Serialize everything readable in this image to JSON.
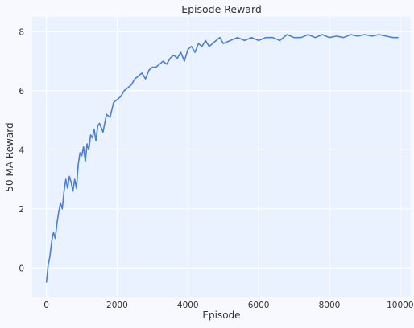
{
  "chart_data": {
    "type": "line",
    "title": "Episode Reward",
    "xlabel": "Episode",
    "ylabel": "50 MA Reward",
    "xlim": [
      -400,
      10300
    ],
    "ylim": [
      -1.0,
      8.5
    ],
    "xticks": [
      0,
      2000,
      4000,
      6000,
      8000,
      10000
    ],
    "yticks": [
      0,
      2,
      4,
      6,
      8
    ],
    "grid": true,
    "colors": {
      "line": "#4a7fd6",
      "plot_bg": "#eaf2ff",
      "page_bg": "#f7f9fe",
      "grid": "#ffffff"
    },
    "series": [
      {
        "x": [
          0,
          50,
          100,
          150,
          200,
          250,
          300,
          350,
          400,
          450,
          500,
          550,
          600,
          650,
          700,
          750,
          800,
          850,
          900,
          950,
          1000,
          1050,
          1100,
          1150,
          1200,
          1250,
          1300,
          1350,
          1400,
          1450,
          1500,
          1600,
          1700,
          1800,
          1900,
          2000,
          2100,
          2200,
          2300,
          2400,
          2500,
          2600,
          2700,
          2800,
          2900,
          3000,
          3100,
          3200,
          3300,
          3400,
          3500,
          3600,
          3700,
          3800,
          3900,
          4000,
          4100,
          4200,
          4300,
          4400,
          4500,
          4600,
          4700,
          4800,
          4900,
          5000,
          5200,
          5400,
          5600,
          5800,
          6000,
          6200,
          6400,
          6600,
          6800,
          7000,
          7200,
          7400,
          7600,
          7800,
          8000,
          8200,
          8400,
          8600,
          8800,
          9000,
          9200,
          9400,
          9600,
          9800,
          9950
        ],
        "y": [
          -0.5,
          0.1,
          0.4,
          0.9,
          1.2,
          1.0,
          1.5,
          1.9,
          2.2,
          2.0,
          2.6,
          3.0,
          2.7,
          3.1,
          2.9,
          2.6,
          3.0,
          2.7,
          3.5,
          3.9,
          3.8,
          4.1,
          3.6,
          4.2,
          4.0,
          4.5,
          4.4,
          4.7,
          4.3,
          4.8,
          4.9,
          4.6,
          5.2,
          5.1,
          5.6,
          5.7,
          5.8,
          6.0,
          6.1,
          6.2,
          6.4,
          6.5,
          6.6,
          6.4,
          6.7,
          6.8,
          6.8,
          6.9,
          7.0,
          6.9,
          7.1,
          7.2,
          7.1,
          7.3,
          7.0,
          7.4,
          7.5,
          7.3,
          7.6,
          7.5,
          7.7,
          7.5,
          7.6,
          7.7,
          7.8,
          7.6,
          7.7,
          7.8,
          7.7,
          7.8,
          7.7,
          7.8,
          7.8,
          7.7,
          7.9,
          7.8,
          7.8,
          7.9,
          7.8,
          7.9,
          7.8,
          7.85,
          7.8,
          7.9,
          7.85,
          7.9,
          7.85,
          7.9,
          7.85,
          7.8,
          7.8
        ]
      }
    ]
  }
}
